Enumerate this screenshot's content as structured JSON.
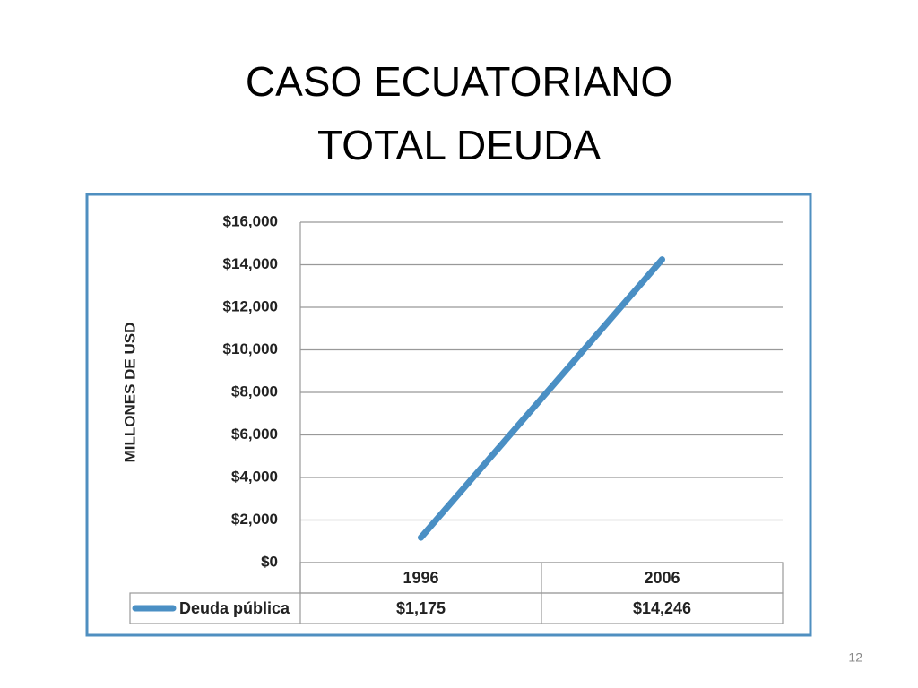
{
  "slide": {
    "title_lines": [
      "CASO ECUATORIANO",
      "TOTAL DEUDA"
    ],
    "number": 12
  },
  "chart_data": {
    "type": "line",
    "y_axis_label": "MILLONES DE USD",
    "categories": [
      "1996",
      "2006"
    ],
    "series": [
      {
        "name": "Deuda pública",
        "color": "#4a8fc4",
        "values": [
          1175,
          14246
        ],
        "value_labels": [
          "$1,175",
          "$14,246"
        ]
      }
    ],
    "ylim": [
      0,
      16000
    ],
    "yticks": [
      {
        "value": 0,
        "label": "$0"
      },
      {
        "value": 2000,
        "label": "$2,000"
      },
      {
        "value": 4000,
        "label": "$4,000"
      },
      {
        "value": 6000,
        "label": "$6,000"
      },
      {
        "value": 8000,
        "label": "$8,000"
      },
      {
        "value": 10000,
        "label": "$10,000"
      },
      {
        "value": 12000,
        "label": "$12,000"
      },
      {
        "value": 14000,
        "label": "$14,000"
      },
      {
        "value": 16000,
        "label": "$16,000"
      }
    ],
    "grid": true,
    "data_table": true
  }
}
